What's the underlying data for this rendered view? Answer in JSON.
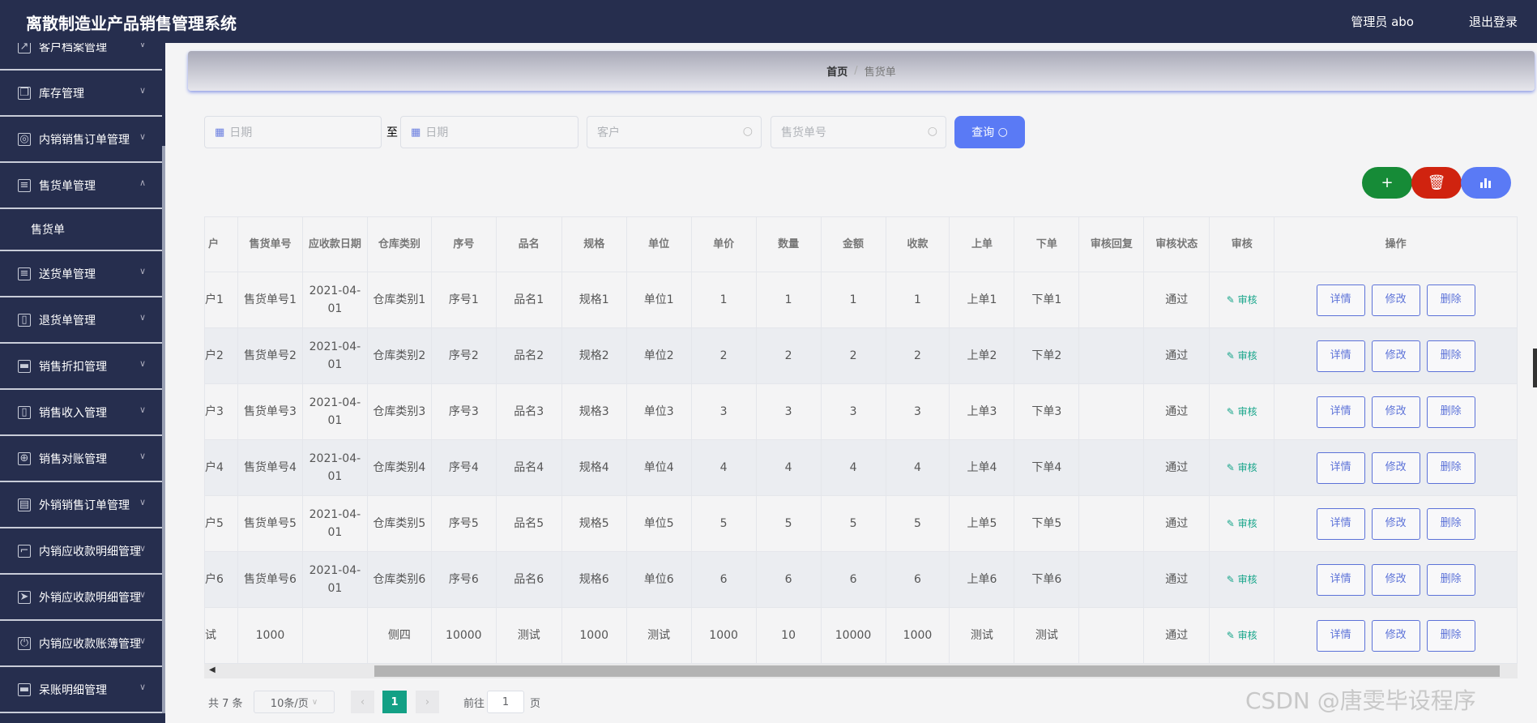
{
  "header": {
    "title": "离散制造业产品销售管理系统",
    "user": "管理员 abo",
    "logout": "退出登录"
  },
  "sidebar": {
    "items": [
      {
        "label": "客户档案管理",
        "icon": "chart-icon",
        "expanded": false
      },
      {
        "label": "库存管理",
        "icon": "copy-icon",
        "expanded": false
      },
      {
        "label": "内销销售订单管理",
        "icon": "lifebuoy-icon",
        "expanded": false
      },
      {
        "label": "售货单管理",
        "icon": "list-icon",
        "expanded": true,
        "children": [
          "售货单"
        ]
      },
      {
        "label": "送货单管理",
        "icon": "list-icon",
        "expanded": false
      },
      {
        "label": "退货单管理",
        "icon": "mic-icon",
        "expanded": false
      },
      {
        "label": "销售折扣管理",
        "icon": "chat-icon",
        "expanded": false
      },
      {
        "label": "销售收入管理",
        "icon": "mic-icon",
        "expanded": false
      },
      {
        "label": "销售对账管理",
        "icon": "target-icon",
        "expanded": false
      },
      {
        "label": "外销销售订单管理",
        "icon": "document-icon",
        "expanded": false
      },
      {
        "label": "内销应收款明细管理",
        "icon": "crop-icon",
        "expanded": false
      },
      {
        "label": "外销应收款明细管理",
        "icon": "send-icon",
        "expanded": false
      },
      {
        "label": "内销应收款账簿管理",
        "icon": "power-icon",
        "expanded": false
      },
      {
        "label": "呆账明细管理",
        "icon": "monitor-icon",
        "expanded": false
      }
    ]
  },
  "breadcrumb": {
    "home": "首页",
    "separator": "/",
    "current": "售货单"
  },
  "filters": {
    "date_start_placeholder": "日期",
    "to": "至",
    "date_end_placeholder": "日期",
    "customer_placeholder": "客户",
    "order_no_placeholder": "售货单号",
    "query_label": "查询"
  },
  "actions": {
    "add_color": "#168b37",
    "delete_color": "#d0230f",
    "chart_color": "#5a7af5"
  },
  "table": {
    "columns": [
      "户",
      "售货单号",
      "应收款日期",
      "仓库类别",
      "序号",
      "品名",
      "规格",
      "单位",
      "单价",
      "数量",
      "金额",
      "收款",
      "上单",
      "下单",
      "审核回复",
      "审核状态",
      "审核",
      "操作"
    ],
    "rows": [
      [
        "户1",
        "售货单号1",
        "2021-04-01",
        "仓库类别1",
        "序号1",
        "品名1",
        "规格1",
        "单位1",
        "1",
        "1",
        "1",
        "1",
        "上单1",
        "下单1",
        "",
        "通过"
      ],
      [
        "户2",
        "售货单号2",
        "2021-04-01",
        "仓库类别2",
        "序号2",
        "品名2",
        "规格2",
        "单位2",
        "2",
        "2",
        "2",
        "2",
        "上单2",
        "下单2",
        "",
        "通过"
      ],
      [
        "户3",
        "售货单号3",
        "2021-04-01",
        "仓库类别3",
        "序号3",
        "品名3",
        "规格3",
        "单位3",
        "3",
        "3",
        "3",
        "3",
        "上单3",
        "下单3",
        "",
        "通过"
      ],
      [
        "户4",
        "售货单号4",
        "2021-04-01",
        "仓库类别4",
        "序号4",
        "品名4",
        "规格4",
        "单位4",
        "4",
        "4",
        "4",
        "4",
        "上单4",
        "下单4",
        "",
        "通过"
      ],
      [
        "户5",
        "售货单号5",
        "2021-04-01",
        "仓库类别5",
        "序号5",
        "品名5",
        "规格5",
        "单位5",
        "5",
        "5",
        "5",
        "5",
        "上单5",
        "下单5",
        "",
        "通过"
      ],
      [
        "户6",
        "售货单号6",
        "2021-04-01",
        "仓库类别6",
        "序号6",
        "品名6",
        "规格6",
        "单位6",
        "6",
        "6",
        "6",
        "6",
        "上单6",
        "下单6",
        "",
        "通过"
      ],
      [
        "试",
        "1000",
        "",
        "侧四",
        "10000",
        "测试",
        "1000",
        "测试",
        "1000",
        "10",
        "10000",
        "1000",
        "测试",
        "测试",
        "",
        "通过"
      ]
    ],
    "audit_label": "审核",
    "detail_label": "详情",
    "edit_label": "修改",
    "delete_label": "删除"
  },
  "pagination": {
    "total": "共 7 条",
    "page_size": "10条/页",
    "current_page": "1",
    "goto_label": "前往",
    "goto_value": "1",
    "page_suffix": "页"
  },
  "watermark": "CSDN @唐雯毕设程序"
}
